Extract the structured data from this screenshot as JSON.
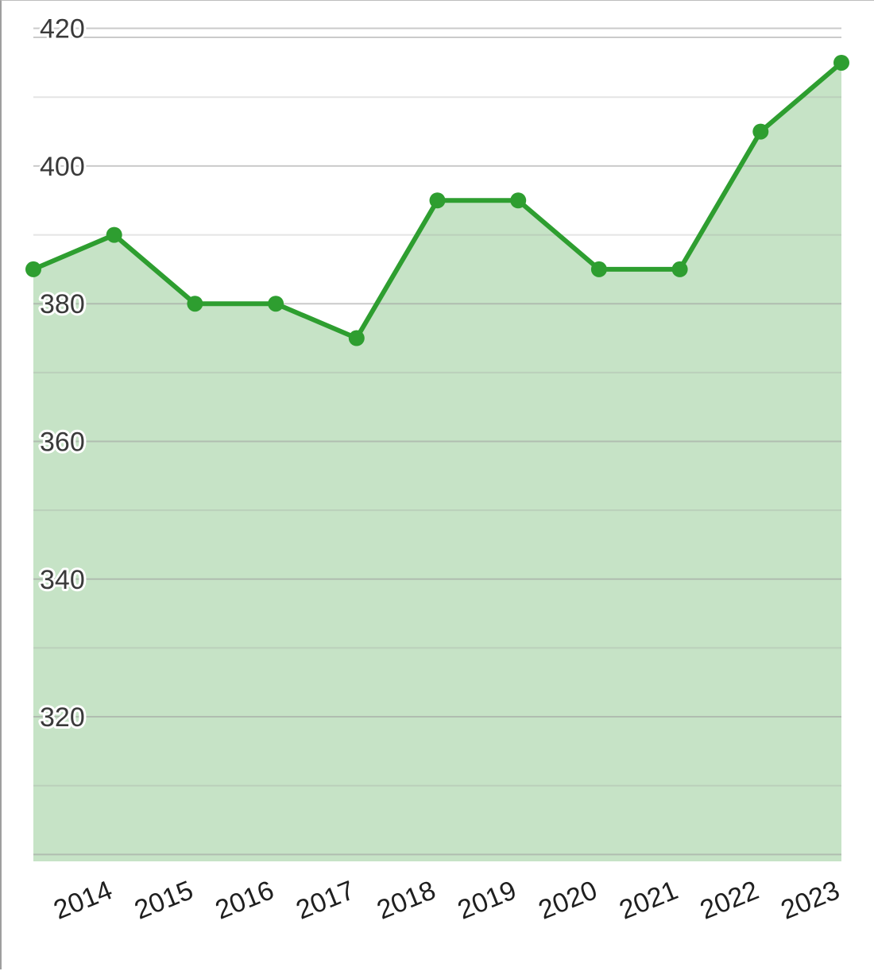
{
  "chart_data": {
    "type": "area",
    "x": [
      "2013",
      "2014",
      "2015",
      "2016",
      "2017",
      "2018",
      "2019",
      "2020",
      "2021",
      "2022",
      "2023"
    ],
    "x_tick_labels": [
      "2014",
      "2015",
      "2016",
      "2017",
      "2018",
      "2019",
      "2020",
      "2021",
      "2022",
      "2023"
    ],
    "series": [
      {
        "values": [
          385,
          390,
          380,
          380,
          375,
          395,
          395,
          385,
          385,
          405,
          415
        ]
      }
    ],
    "yticks": [
      320,
      340,
      360,
      380,
      400,
      420
    ],
    "ylim": [
      299,
      424
    ],
    "minor_gridlines": true,
    "colors": {
      "line": "#2e9e30",
      "fill": "#c6e3c6",
      "grid": "#9e9e9e"
    },
    "title": "",
    "xlabel": "",
    "ylabel": ""
  }
}
